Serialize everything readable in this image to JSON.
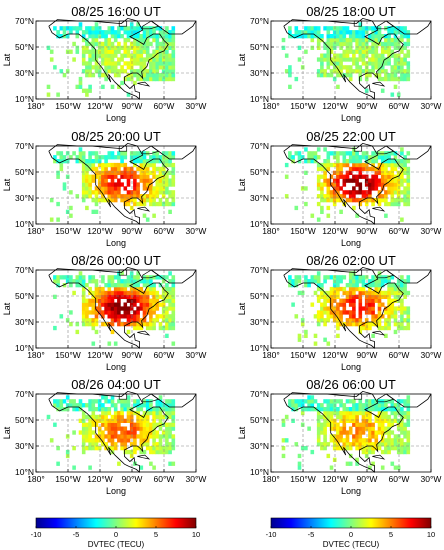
{
  "chart_data": {
    "type": "heatmap",
    "panels": [
      {
        "title": "08/25 16:00 UT",
        "intensity": 0.15
      },
      {
        "title": "08/25 18:00 UT",
        "intensity": 0.1
      },
      {
        "title": "08/25 20:00 UT",
        "intensity": 0.7
      },
      {
        "title": "08/25 22:00 UT",
        "intensity": 0.92
      },
      {
        "title": "08/26 00:00 UT",
        "intensity": 0.95
      },
      {
        "title": "08/26 02:00 UT",
        "intensity": 0.7
      },
      {
        "title": "08/26 04:00 UT",
        "intensity": 0.55
      },
      {
        "title": "08/26 06:00 UT",
        "intensity": 0.45
      }
    ],
    "xlabel": "Long",
    "ylabel": "Lat",
    "xlim": [
      -180,
      -30
    ],
    "ylim": [
      10,
      70
    ],
    "x_ticks": [
      -180,
      -150,
      -120,
      -90,
      -60,
      -30
    ],
    "x_tick_labels": [
      "180°",
      "150°W",
      "120°W",
      "90°W",
      "60°W",
      "30°W"
    ],
    "y_ticks": [
      10,
      30,
      50,
      70
    ],
    "y_tick_labels": [
      "10°N",
      "30°N",
      "50°N",
      "70°N"
    ],
    "grid": "dashed",
    "colorbar": {
      "label": "DVTEC (TECU)",
      "min": -10,
      "max": 10,
      "ticks": [
        -10,
        -5,
        0,
        5,
        10
      ],
      "tick_labels": [
        "-10",
        "-5",
        "0",
        "5",
        "10"
      ],
      "colormap": "jet"
    }
  }
}
